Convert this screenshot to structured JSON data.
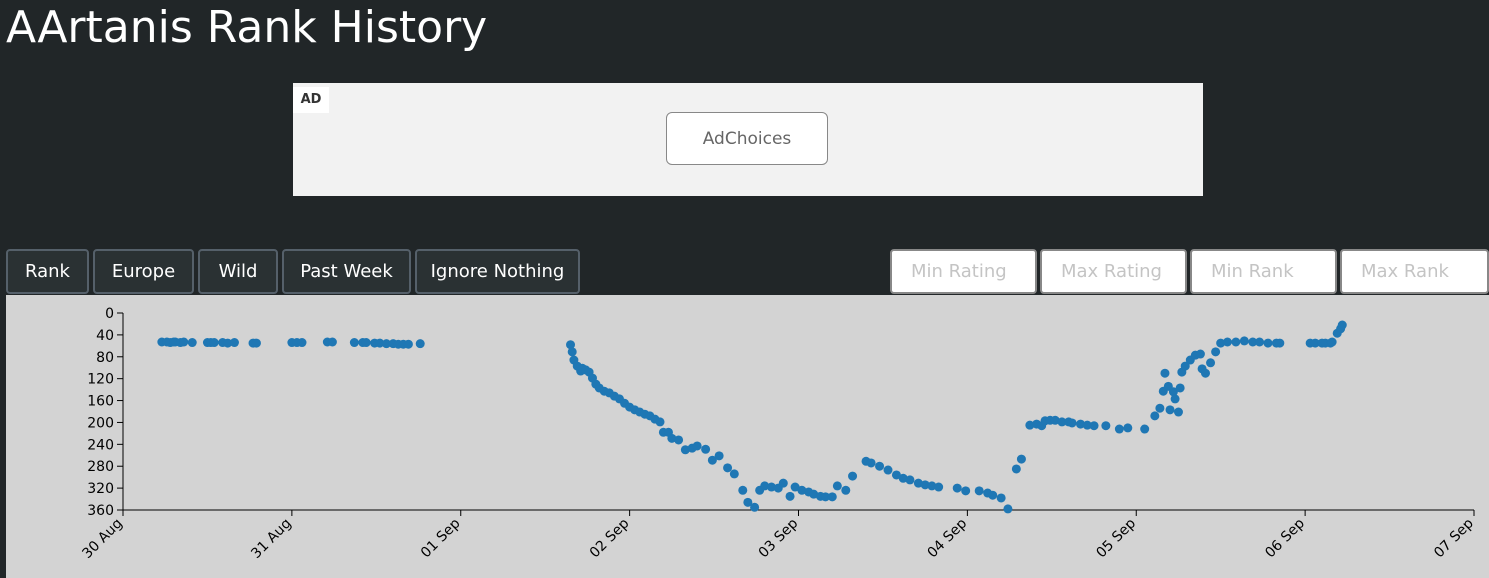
{
  "header": {
    "title": "AArtanis Rank History"
  },
  "ad": {
    "label": "AD",
    "button": "AdChoices"
  },
  "buttons": [
    "Rank",
    "Europe",
    "Wild",
    "Past Week",
    "Ignore Nothing"
  ],
  "inputs": [
    "Min Rating",
    "Max Rating",
    "Min Rank",
    "Max Rank"
  ],
  "chart_data": {
    "type": "scatter",
    "color": "#1f77b4",
    "xlim": [
      0,
      8
    ],
    "xticks": [
      {
        "value": 0,
        "label": "30 Aug"
      },
      {
        "value": 1,
        "label": "31 Aug"
      },
      {
        "value": 2,
        "label": "01 Sep"
      },
      {
        "value": 3,
        "label": "02 Sep"
      },
      {
        "value": 4,
        "label": "03 Sep"
      },
      {
        "value": 5,
        "label": "04 Sep"
      },
      {
        "value": 6,
        "label": "05 Sep"
      },
      {
        "value": 7,
        "label": "06 Sep"
      },
      {
        "value": 8,
        "label": "07 Sep"
      }
    ],
    "ylim": [
      360,
      0
    ],
    "yticks": [
      0,
      40,
      80,
      120,
      160,
      200,
      240,
      280,
      320,
      360
    ],
    "x": [
      0.23,
      0.26,
      0.28,
      0.3,
      0.31,
      0.34,
      0.36,
      0.41,
      0.5,
      0.52,
      0.54,
      0.59,
      0.62,
      0.66,
      0.77,
      0.79,
      1.0,
      1.03,
      1.06,
      1.21,
      1.24,
      1.37,
      1.42,
      1.44,
      1.49,
      1.52,
      1.56,
      1.6,
      1.63,
      1.66,
      1.69,
      1.76,
      2.65,
      2.66,
      2.67,
      2.69,
      2.71,
      2.72,
      2.74,
      2.76,
      2.78,
      2.8,
      2.82,
      2.85,
      2.88,
      2.91,
      2.94,
      2.97,
      3.0,
      3.03,
      3.06,
      3.09,
      3.12,
      3.15,
      3.18,
      3.2,
      3.23,
      3.25,
      3.29,
      3.33,
      3.37,
      3.4,
      3.45,
      3.49,
      3.53,
      3.58,
      3.62,
      3.67,
      3.7,
      3.74,
      3.77,
      3.8,
      3.84,
      3.88,
      3.91,
      3.95,
      3.98,
      4.02,
      4.06,
      4.09,
      4.13,
      4.16,
      4.2,
      4.23,
      4.28,
      4.32,
      4.4,
      4.43,
      4.48,
      4.53,
      4.58,
      4.62,
      4.66,
      4.71,
      4.75,
      4.79,
      4.83,
      4.94,
      4.99,
      5.07,
      5.12,
      5.15,
      5.2,
      5.24,
      5.29,
      5.32,
      5.37,
      5.41,
      5.44,
      5.46,
      5.49,
      5.52,
      5.56,
      5.6,
      5.62,
      5.67,
      5.71,
      5.75,
      5.82,
      5.9,
      5.95,
      6.05,
      6.11,
      6.14,
      6.16,
      6.17,
      6.19,
      6.2,
      6.22,
      6.23,
      6.25,
      6.26,
      6.27,
      6.29,
      6.32,
      6.35,
      6.38,
      6.39,
      6.41,
      6.44,
      6.47,
      6.5,
      6.54,
      6.59,
      6.64,
      6.69,
      6.73,
      6.78,
      6.83,
      6.85,
      7.03,
      7.06,
      7.1,
      7.12,
      7.15,
      7.16,
      7.19,
      7.21,
      7.22
    ],
    "values": [
      53,
      53,
      54,
      53,
      53,
      54,
      53,
      54,
      54,
      54,
      54,
      54,
      55,
      54,
      55,
      55,
      54,
      54,
      54,
      53,
      53,
      54,
      54,
      54,
      55,
      55,
      56,
      56,
      57,
      57,
      57,
      56,
      58,
      71,
      86,
      97,
      106,
      101,
      104,
      108,
      119,
      130,
      137,
      143,
      146,
      152,
      157,
      165,
      172,
      177,
      181,
      185,
      188,
      194,
      199,
      218,
      218,
      229,
      232,
      250,
      247,
      243,
      249,
      269,
      261,
      283,
      294,
      324,
      346,
      355,
      324,
      316,
      318,
      320,
      311,
      335,
      318,
      324,
      327,
      331,
      335,
      336,
      336,
      316,
      324,
      298,
      271,
      274,
      280,
      287,
      296,
      302,
      305,
      311,
      314,
      316,
      318,
      320,
      325,
      325,
      329,
      333,
      338,
      358,
      285,
      267,
      205,
      203,
      206,
      197,
      196,
      196,
      199,
      199,
      201,
      203,
      205,
      206,
      206,
      212,
      210,
      212,
      188,
      174,
      143,
      110,
      134,
      177,
      144,
      157,
      181,
      137,
      108,
      97,
      86,
      77,
      75,
      102,
      110,
      91,
      71,
      55,
      53,
      53,
      51,
      53,
      53,
      55,
      55,
      55,
      55,
      55,
      55,
      55,
      55,
      53,
      37,
      29,
      22
    ]
  }
}
